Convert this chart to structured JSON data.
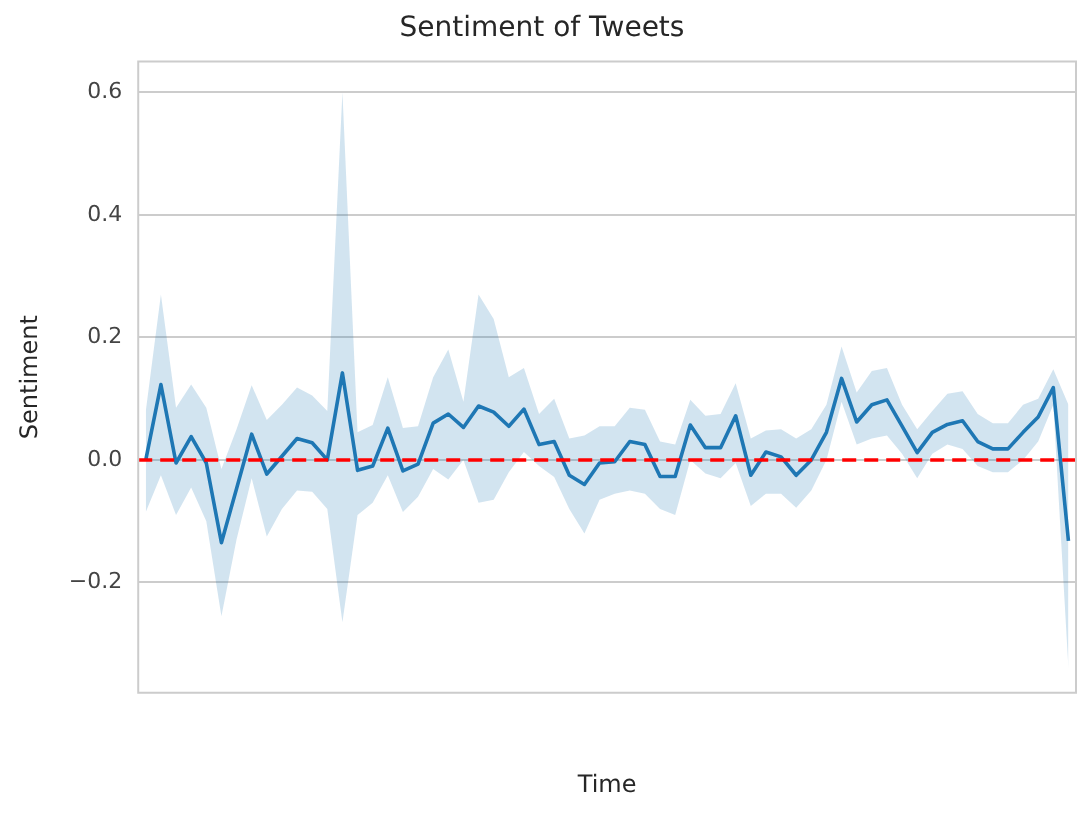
{
  "chart_data": {
    "type": "line",
    "title": "Sentiment of Tweets",
    "xlabel": "Time",
    "ylabel": "Sentiment",
    "categories": [
      null,
      null,
      null,
      null,
      null,
      null,
      null,
      null,
      null,
      null,
      null,
      null,
      null,
      null,
      null,
      null,
      null,
      null,
      null,
      null,
      null,
      null,
      null,
      null,
      null,
      null,
      null,
      null,
      null,
      null,
      null,
      null,
      null,
      null,
      null,
      null,
      null,
      null,
      null,
      null,
      null,
      null,
      null,
      null,
      null,
      null,
      null,
      null,
      null,
      null,
      null,
      null,
      null,
      null,
      null,
      null,
      null,
      null,
      null,
      null,
      null,
      null
    ],
    "series": [
      {
        "color": "#1f77b4",
        "values": [
          0,
          0.123,
          -0.005,
          0.038,
          -0.005,
          -0.135,
          -0.047,
          0.042,
          -0.023,
          0.006,
          0.035,
          0.028,
          0,
          0.142,
          -0.017,
          -0.01,
          0.052,
          -0.018,
          -0.007,
          0.06,
          0.075,
          0.053,
          0.088,
          0.078,
          0.055,
          0.083,
          0.025,
          0.03,
          -0.025,
          -0.04,
          -0.005,
          -0.003,
          0.03,
          0.025,
          -0.027,
          -0.027,
          0.057,
          0.02,
          0.02,
          0.072,
          -0.025,
          0.013,
          0.005,
          -0.025,
          0,
          0.045,
          0.133,
          0.062,
          0.09,
          0.098,
          0.055,
          0.012,
          0.045,
          0.058,
          0.064,
          0.03,
          0.018,
          0.018,
          0.045,
          0.07,
          0.118,
          -0.132
        ],
        "upper": [
          0.08,
          0.27,
          0.085,
          0.123,
          0.085,
          -0.015,
          0.05,
          0.122,
          0.065,
          0.09,
          0.118,
          0.105,
          0.08,
          0.6,
          0.045,
          0.057,
          0.135,
          0.052,
          0.055,
          0.135,
          0.18,
          0.095,
          0.27,
          0.23,
          0.135,
          0.15,
          0.075,
          0.1,
          0.035,
          0.04,
          0.055,
          0.055,
          0.085,
          0.082,
          0.03,
          0.025,
          0.098,
          0.072,
          0.075,
          0.125,
          0.035,
          0.048,
          0.05,
          0.035,
          0.05,
          0.09,
          0.185,
          0.11,
          0.145,
          0.15,
          0.09,
          0.05,
          0.08,
          0.108,
          0.112,
          0.075,
          0.06,
          0.06,
          0.09,
          0.1,
          0.148,
          0.09
        ],
        "lower": [
          -0.085,
          -0.025,
          -0.09,
          -0.045,
          -0.1,
          -0.255,
          -0.13,
          -0.03,
          -0.125,
          -0.08,
          -0.05,
          -0.052,
          -0.08,
          -0.265,
          -0.09,
          -0.07,
          -0.025,
          -0.085,
          -0.06,
          -0.015,
          -0.032,
          0,
          -0.07,
          -0.065,
          -0.02,
          0.013,
          -0.01,
          -0.028,
          -0.08,
          -0.12,
          -0.065,
          -0.055,
          -0.05,
          -0.055,
          -0.08,
          -0.09,
          0,
          -0.022,
          -0.03,
          -0.005,
          -0.075,
          -0.055,
          -0.055,
          -0.078,
          -0.05,
          0,
          0.095,
          0.025,
          0.035,
          0.04,
          0.01,
          -0.03,
          0.01,
          0.025,
          0.018,
          -0.01,
          -0.02,
          -0.02,
          0,
          0.03,
          0.09,
          -0.34
        ]
      }
    ],
    "ylim": [
      -0.38,
      0.65
    ],
    "yticks": [
      {
        "value": -0.2,
        "label": "−0.2"
      },
      {
        "value": 0,
        "label": "0.0"
      },
      {
        "value": 0.2,
        "label": "0.2"
      },
      {
        "value": 0.4,
        "label": "0.4"
      },
      {
        "value": 0.6,
        "label": "0.6"
      }
    ],
    "ref_lines": [
      {
        "axis": "y",
        "value": 0,
        "color": "#ff0000",
        "line_style": "dashed"
      }
    ],
    "grid": "y",
    "legend": false,
    "marker": "none",
    "line_style": "solid"
  }
}
